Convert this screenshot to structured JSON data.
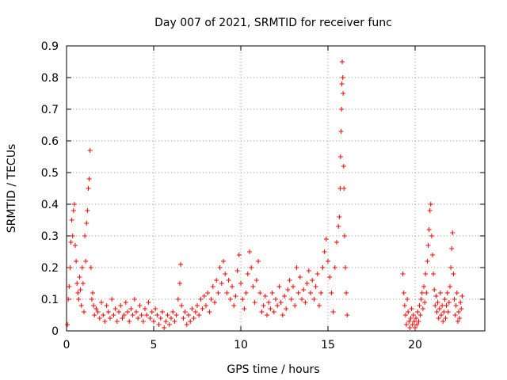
{
  "chart_data": {
    "type": "scatter",
    "title": "Day 007 of 2021, SRMTID for receiver func",
    "xlabel": "GPS time / hours",
    "ylabel": "SRMTID / TECUs",
    "xlim": [
      0,
      24
    ],
    "ylim": [
      0,
      0.9
    ],
    "xticks": [
      0,
      5,
      10,
      15,
      20
    ],
    "yticks": [
      0,
      0.1,
      0.2,
      0.3,
      0.4,
      0.5,
      0.6,
      0.7,
      0.8,
      0.9
    ],
    "grid": true,
    "marker": "+",
    "color": "#ff0000",
    "series": [
      {
        "name": "SRMTID",
        "points": [
          [
            0.05,
            0.02
          ],
          [
            0.1,
            0.1
          ],
          [
            0.15,
            0.14
          ],
          [
            0.2,
            0.2
          ],
          [
            0.25,
            0.28
          ],
          [
            0.3,
            0.35
          ],
          [
            0.35,
            0.3
          ],
          [
            0.4,
            0.38
          ],
          [
            0.45,
            0.4
          ],
          [
            0.5,
            0.27
          ],
          [
            0.55,
            0.22
          ],
          [
            0.6,
            0.15
          ],
          [
            0.65,
            0.12
          ],
          [
            0.7,
            0.1
          ],
          [
            0.75,
            0.17
          ],
          [
            0.8,
            0.13
          ],
          [
            0.85,
            0.08
          ],
          [
            0.9,
            0.2
          ],
          [
            0.95,
            0.15
          ],
          [
            1.0,
            0.06
          ],
          [
            1.05,
            0.3
          ],
          [
            1.1,
            0.22
          ],
          [
            1.15,
            0.34
          ],
          [
            1.2,
            0.38
          ],
          [
            1.25,
            0.45
          ],
          [
            1.3,
            0.48
          ],
          [
            1.35,
            0.57
          ],
          [
            1.4,
            0.2
          ],
          [
            1.45,
            0.1
          ],
          [
            1.5,
            0.12
          ],
          [
            1.55,
            0.08
          ],
          [
            1.6,
            0.05
          ],
          [
            1.7,
            0.07
          ],
          [
            1.8,
            0.06
          ],
          [
            1.9,
            0.04
          ],
          [
            2.0,
            0.09
          ],
          [
            2.1,
            0.05
          ],
          [
            2.2,
            0.03
          ],
          [
            2.3,
            0.08
          ],
          [
            2.4,
            0.06
          ],
          [
            2.5,
            0.04
          ],
          [
            2.6,
            0.1
          ],
          [
            2.7,
            0.05
          ],
          [
            2.8,
            0.07
          ],
          [
            2.9,
            0.03
          ],
          [
            3.0,
            0.06
          ],
          [
            3.1,
            0.08
          ],
          [
            3.2,
            0.04
          ],
          [
            3.3,
            0.05
          ],
          [
            3.4,
            0.09
          ],
          [
            3.5,
            0.06
          ],
          [
            3.6,
            0.03
          ],
          [
            3.7,
            0.07
          ],
          [
            3.8,
            0.05
          ],
          [
            3.9,
            0.1
          ],
          [
            4.0,
            0.06
          ],
          [
            4.1,
            0.04
          ],
          [
            4.2,
            0.08
          ],
          [
            4.3,
            0.05
          ],
          [
            4.4,
            0.03
          ],
          [
            4.5,
            0.07
          ],
          [
            4.6,
            0.05
          ],
          [
            4.7,
            0.09
          ],
          [
            4.8,
            0.04
          ],
          [
            4.9,
            0.06
          ],
          [
            5.0,
            0.03
          ],
          [
            5.1,
            0.07
          ],
          [
            5.2,
            0.05
          ],
          [
            5.3,
            0.02
          ],
          [
            5.4,
            0.04
          ],
          [
            5.5,
            0.06
          ],
          [
            5.6,
            0.01
          ],
          [
            5.7,
            0.03
          ],
          [
            5.8,
            0.05
          ],
          [
            5.9,
            0.02
          ],
          [
            6.0,
            0.04
          ],
          [
            6.1,
            0.06
          ],
          [
            6.2,
            0.03
          ],
          [
            6.3,
            0.05
          ],
          [
            6.4,
            0.1
          ],
          [
            6.5,
            0.15
          ],
          [
            6.55,
            0.21
          ],
          [
            6.6,
            0.08
          ],
          [
            6.7,
            0.04
          ],
          [
            6.8,
            0.06
          ],
          [
            6.9,
            0.02
          ],
          [
            7.0,
            0.05
          ],
          [
            7.1,
            0.03
          ],
          [
            7.2,
            0.07
          ],
          [
            7.3,
            0.04
          ],
          [
            7.4,
            0.06
          ],
          [
            7.5,
            0.08
          ],
          [
            7.6,
            0.05
          ],
          [
            7.7,
            0.1
          ],
          [
            7.8,
            0.07
          ],
          [
            7.9,
            0.11
          ],
          [
            8.0,
            0.08
          ],
          [
            8.1,
            0.12
          ],
          [
            8.2,
            0.06
          ],
          [
            8.3,
            0.1
          ],
          [
            8.4,
            0.14
          ],
          [
            8.5,
            0.09
          ],
          [
            8.6,
            0.16
          ],
          [
            8.7,
            0.12
          ],
          [
            8.8,
            0.2
          ],
          [
            8.9,
            0.15
          ],
          [
            9.0,
            0.22
          ],
          [
            9.1,
            0.18
          ],
          [
            9.2,
            0.12
          ],
          [
            9.3,
            0.16
          ],
          [
            9.4,
            0.1
          ],
          [
            9.5,
            0.14
          ],
          [
            9.6,
            0.08
          ],
          [
            9.7,
            0.11
          ],
          [
            9.8,
            0.19
          ],
          [
            9.9,
            0.24
          ],
          [
            10.0,
            0.15
          ],
          [
            10.1,
            0.1
          ],
          [
            10.2,
            0.07
          ],
          [
            10.3,
            0.12
          ],
          [
            10.4,
            0.18
          ],
          [
            10.5,
            0.25
          ],
          [
            10.6,
            0.2
          ],
          [
            10.7,
            0.14
          ],
          [
            10.8,
            0.09
          ],
          [
            10.9,
            0.16
          ],
          [
            11.0,
            0.22
          ],
          [
            11.1,
            0.12
          ],
          [
            11.2,
            0.06
          ],
          [
            11.3,
            0.08
          ],
          [
            11.4,
            0.11
          ],
          [
            11.5,
            0.05
          ],
          [
            11.6,
            0.09
          ],
          [
            11.7,
            0.07
          ],
          [
            11.8,
            0.12
          ],
          [
            11.9,
            0.06
          ],
          [
            12.0,
            0.1
          ],
          [
            12.1,
            0.08
          ],
          [
            12.2,
            0.14
          ],
          [
            12.3,
            0.09
          ],
          [
            12.4,
            0.05
          ],
          [
            12.5,
            0.11
          ],
          [
            12.6,
            0.07
          ],
          [
            12.7,
            0.13
          ],
          [
            12.8,
            0.16
          ],
          [
            12.9,
            0.1
          ],
          [
            13.0,
            0.14
          ],
          [
            13.1,
            0.08
          ],
          [
            13.2,
            0.2
          ],
          [
            13.3,
            0.12
          ],
          [
            13.4,
            0.17
          ],
          [
            13.5,
            0.1
          ],
          [
            13.6,
            0.13
          ],
          [
            13.7,
            0.09
          ],
          [
            13.8,
            0.15
          ],
          [
            13.9,
            0.19
          ],
          [
            14.0,
            0.12
          ],
          [
            14.1,
            0.16
          ],
          [
            14.2,
            0.1
          ],
          [
            14.3,
            0.14
          ],
          [
            14.4,
            0.18
          ],
          [
            14.5,
            0.08
          ],
          [
            14.6,
            0.12
          ],
          [
            14.7,
            0.2
          ],
          [
            14.8,
            0.25
          ],
          [
            14.9,
            0.29
          ],
          [
            15.0,
            0.22
          ],
          [
            15.1,
            0.17
          ],
          [
            15.2,
            0.12
          ],
          [
            15.3,
            0.06
          ],
          [
            15.4,
            0.2
          ],
          [
            15.5,
            0.28
          ],
          [
            15.6,
            0.33
          ],
          [
            15.65,
            0.36
          ],
          [
            15.7,
            0.45
          ],
          [
            15.72,
            0.55
          ],
          [
            15.75,
            0.63
          ],
          [
            15.78,
            0.7
          ],
          [
            15.8,
            0.78
          ],
          [
            15.82,
            0.85
          ],
          [
            15.85,
            0.8
          ],
          [
            15.87,
            0.75
          ],
          [
            15.9,
            0.52
          ],
          [
            15.92,
            0.45
          ],
          [
            15.95,
            0.3
          ],
          [
            16.0,
            0.2
          ],
          [
            16.05,
            0.12
          ],
          [
            16.1,
            0.05
          ],
          [
            19.3,
            0.18
          ],
          [
            19.35,
            0.12
          ],
          [
            19.4,
            0.08
          ],
          [
            19.45,
            0.05
          ],
          [
            19.5,
            0.02
          ],
          [
            19.55,
            0.1
          ],
          [
            19.6,
            0.06
          ],
          [
            19.65,
            0.03
          ],
          [
            19.7,
            0.01
          ],
          [
            19.75,
            0.04
          ],
          [
            19.8,
            0.07
          ],
          [
            19.85,
            0.02
          ],
          [
            19.9,
            0.05
          ],
          [
            19.95,
            0.03
          ],
          [
            20.0,
            0.01
          ],
          [
            20.05,
            0.04
          ],
          [
            20.1,
            0.02
          ],
          [
            20.15,
            0.06
          ],
          [
            20.2,
            0.03
          ],
          [
            20.25,
            0.08
          ],
          [
            20.3,
            0.05
          ],
          [
            20.35,
            0.1
          ],
          [
            20.4,
            0.12
          ],
          [
            20.45,
            0.07
          ],
          [
            20.5,
            0.14
          ],
          [
            20.55,
            0.09
          ],
          [
            20.6,
            0.18
          ],
          [
            20.65,
            0.12
          ],
          [
            20.7,
            0.22
          ],
          [
            20.75,
            0.27
          ],
          [
            20.8,
            0.32
          ],
          [
            20.85,
            0.38
          ],
          [
            20.9,
            0.4
          ],
          [
            20.95,
            0.3
          ],
          [
            21.0,
            0.24
          ],
          [
            21.05,
            0.18
          ],
          [
            21.1,
            0.13
          ],
          [
            21.15,
            0.08
          ],
          [
            21.2,
            0.11
          ],
          [
            21.25,
            0.06
          ],
          [
            21.3,
            0.09
          ],
          [
            21.35,
            0.04
          ],
          [
            21.4,
            0.07
          ],
          [
            21.45,
            0.12
          ],
          [
            21.5,
            0.05
          ],
          [
            21.55,
            0.08
          ],
          [
            21.6,
            0.03
          ],
          [
            21.65,
            0.06
          ],
          [
            21.7,
            0.1
          ],
          [
            21.75,
            0.04
          ],
          [
            21.8,
            0.08
          ],
          [
            21.85,
            0.12
          ],
          [
            21.9,
            0.06
          ],
          [
            21.95,
            0.09
          ],
          [
            22.0,
            0.14
          ],
          [
            22.05,
            0.2
          ],
          [
            22.1,
            0.26
          ],
          [
            22.15,
            0.31
          ],
          [
            22.2,
            0.18
          ],
          [
            22.25,
            0.1
          ],
          [
            22.3,
            0.05
          ],
          [
            22.35,
            0.08
          ],
          [
            22.4,
            0.12
          ],
          [
            22.45,
            0.03
          ],
          [
            22.5,
            0.06
          ],
          [
            22.55,
            0.04
          ],
          [
            22.6,
            0.09
          ],
          [
            22.65,
            0.07
          ],
          [
            22.7,
            0.11
          ]
        ]
      }
    ]
  }
}
